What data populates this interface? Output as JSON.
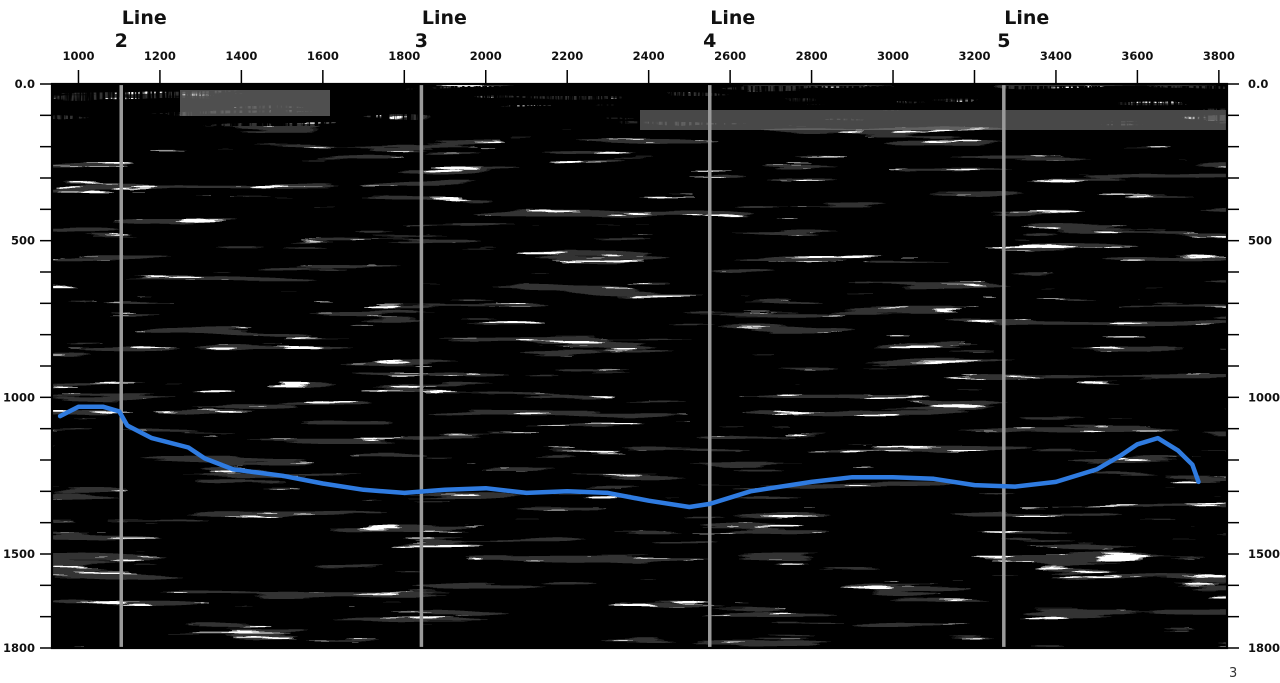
{
  "seismic_section": {
    "x_axis": {
      "ticks": [
        1000,
        1200,
        1400,
        1600,
        1800,
        2000,
        2200,
        2400,
        2600,
        2800,
        3000,
        3200,
        3400,
        3600,
        3800
      ],
      "range": [
        935,
        3820
      ],
      "position": "top"
    },
    "y_axis": {
      "tick_labels": [
        "0.0",
        "500",
        "1000",
        "1500",
        "1800"
      ],
      "range": [
        0,
        1800
      ],
      "sides": [
        "left",
        "right"
      ],
      "direction": "down"
    },
    "tie_lines": [
      {
        "word": "Line",
        "number": "2",
        "x": 1105
      },
      {
        "word": "Line",
        "number": "3",
        "x": 1842
      },
      {
        "word": "Line",
        "number": "4",
        "x": 2550
      },
      {
        "word": "Line",
        "number": "5",
        "x": 3272
      }
    ],
    "horizon": {
      "color": "#2f7be0",
      "points": [
        [
          955,
          1060
        ],
        [
          1000,
          1030
        ],
        [
          1060,
          1030
        ],
        [
          1100,
          1045
        ],
        [
          1120,
          1090
        ],
        [
          1180,
          1130
        ],
        [
          1270,
          1160
        ],
        [
          1310,
          1195
        ],
        [
          1380,
          1230
        ],
        [
          1500,
          1250
        ],
        [
          1600,
          1275
        ],
        [
          1700,
          1295
        ],
        [
          1800,
          1305
        ],
        [
          1900,
          1295
        ],
        [
          2000,
          1290
        ],
        [
          2100,
          1305
        ],
        [
          2200,
          1300
        ],
        [
          2300,
          1305
        ],
        [
          2400,
          1330
        ],
        [
          2500,
          1350
        ],
        [
          2550,
          1340
        ],
        [
          2650,
          1300
        ],
        [
          2800,
          1270
        ],
        [
          2900,
          1255
        ],
        [
          3000,
          1255
        ],
        [
          3100,
          1260
        ],
        [
          3200,
          1280
        ],
        [
          3300,
          1285
        ],
        [
          3400,
          1270
        ],
        [
          3500,
          1230
        ],
        [
          3560,
          1185
        ],
        [
          3600,
          1150
        ],
        [
          3650,
          1130
        ],
        [
          3700,
          1170
        ],
        [
          3735,
          1215
        ],
        [
          3750,
          1270
        ]
      ]
    },
    "colors": {
      "tie_line": "#9a9a9a",
      "frame": "#000000"
    }
  },
  "page_number": "3"
}
